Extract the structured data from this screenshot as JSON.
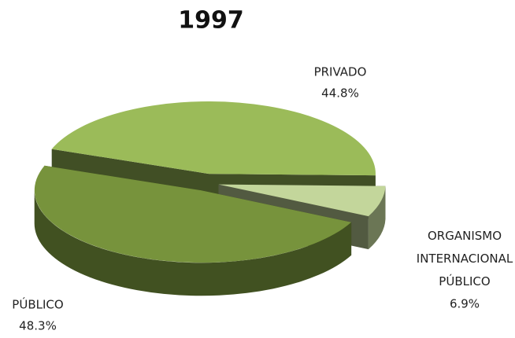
{
  "chart_data": {
    "type": "pie3d",
    "title": "1997",
    "categories": [
      "PRIVADO",
      "ORGANISMO INTERNACIONAL PÚBLICO",
      "PÚBLICO"
    ],
    "values": [
      44.8,
      6.9,
      48.3
    ],
    "value_labels": [
      "44.8%",
      "6.9%",
      "48.3%"
    ],
    "colors": [
      "#9bbb59",
      "#c3d69b",
      "#77933c"
    ]
  }
}
